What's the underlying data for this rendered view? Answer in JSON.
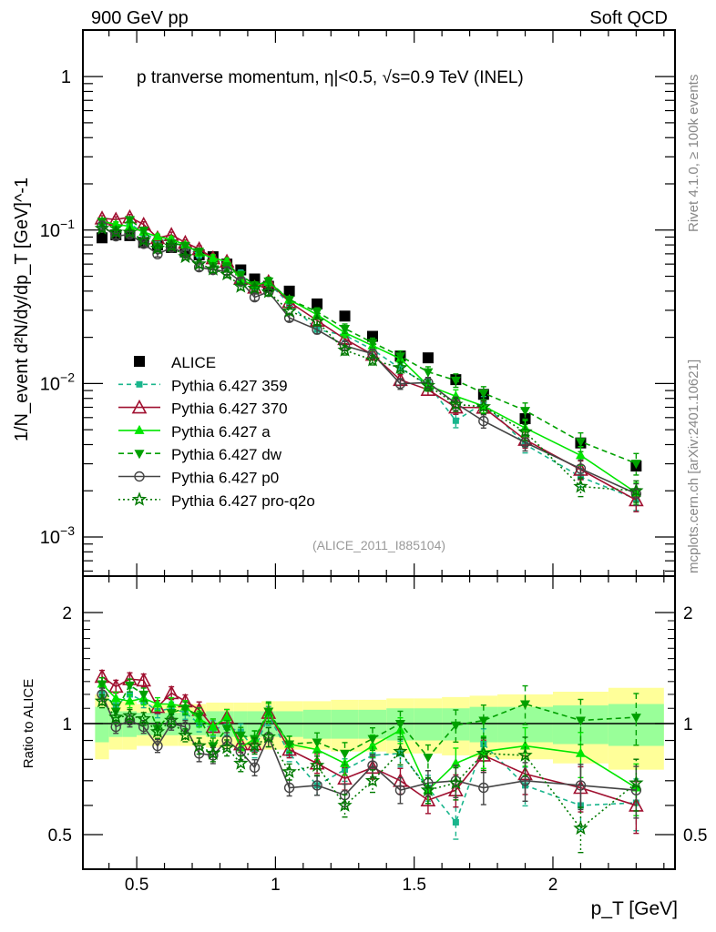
{
  "header": {
    "left": "900 GeV pp",
    "right": "Soft QCD"
  },
  "side": {
    "rivet": "Rivet 4.1.0, ≥ 100k events",
    "mcplots": "mcplots.cern.ch [arXiv:2401.10621]"
  },
  "chart_data": {
    "type": "scatter",
    "title": "p tranverse momentum, η|<0.5, √s=0.9 TeV (INEL)",
    "watermark": "(ALICE_2011_I885104)",
    "xlabel": "p_T [GeV]",
    "ylabel": "1/N_event d²N/dy/dp_T [GeV]^-1",
    "ratio_ylabel": "Ratio to ALICE",
    "xlim": [
      0.306,
      2.44
    ],
    "ylim": [
      0.000556,
      2.01
    ],
    "ratio_ylim": [
      0.403,
      2.51
    ],
    "yscale": "log",
    "legend_position": "center-left",
    "x_ticks": [
      "0.5",
      "1",
      "1.5",
      "2"
    ],
    "x_tick_values": [
      0.5,
      1,
      1.5,
      2
    ],
    "y_ticks": [
      {
        "base": "1",
        "exp": ""
      },
      {
        "base": "10",
        "exp": "−1"
      },
      {
        "base": "10",
        "exp": "−2"
      },
      {
        "base": "10",
        "exp": "−3"
      }
    ],
    "y_tick_values": [
      1,
      0.1,
      0.01,
      0.001
    ],
    "ratio_ticks": [
      "0.5",
      "1",
      "2"
    ],
    "ratio_tick_values": [
      0.5,
      1,
      2
    ],
    "x": [
      0.375,
      0.425,
      0.475,
      0.525,
      0.575,
      0.625,
      0.675,
      0.725,
      0.775,
      0.825,
      0.875,
      0.925,
      0.975,
      1.05,
      1.15,
      1.25,
      1.35,
      1.45,
      1.55,
      1.65,
      1.75,
      1.9,
      2.1,
      2.3
    ],
    "bin_edges": [
      0.35,
      0.4,
      0.45,
      0.5,
      0.55,
      0.6,
      0.65,
      0.7,
      0.75,
      0.8,
      0.85,
      0.9,
      0.95,
      1.0,
      1.1,
      1.2,
      1.3,
      1.4,
      1.5,
      1.6,
      1.7,
      1.8,
      2.0,
      2.2,
      2.4
    ],
    "reference": {
      "name": "ALICE",
      "values": [
        0.089,
        0.093,
        0.092,
        0.083,
        0.08,
        0.077,
        0.072,
        0.069,
        0.067,
        0.06,
        0.055,
        0.048,
        0.043,
        0.04,
        0.033,
        0.0275,
        0.0203,
        0.0151,
        0.0147,
        0.0106,
        0.0085,
        0.0059,
        0.0041,
        0.0029
      ],
      "band_total_rel": [
        0.2,
        0.15,
        0.15,
        0.13,
        0.13,
        0.13,
        0.13,
        0.13,
        0.14,
        0.14,
        0.14,
        0.14,
        0.15,
        0.15,
        0.15,
        0.16,
        0.16,
        0.17,
        0.17,
        0.18,
        0.19,
        0.2,
        0.22,
        0.25
      ],
      "band_inner_rel": [
        0.11,
        0.08,
        0.08,
        0.07,
        0.07,
        0.07,
        0.07,
        0.07,
        0.08,
        0.08,
        0.08,
        0.08,
        0.08,
        0.08,
        0.09,
        0.09,
        0.09,
        0.1,
        0.1,
        0.1,
        0.11,
        0.11,
        0.12,
        0.13
      ]
    },
    "model_rel_err": [
      0.04,
      0.04,
      0.04,
      0.04,
      0.04,
      0.04,
      0.04,
      0.05,
      0.05,
      0.05,
      0.05,
      0.05,
      0.06,
      0.05,
      0.06,
      0.07,
      0.07,
      0.08,
      0.08,
      0.1,
      0.1,
      0.12,
      0.14,
      0.16
    ],
    "series": [
      {
        "name": "Pythia 6.427 359",
        "color": "#19b58c",
        "dash": "5,4",
        "marker": "square-small",
        "ratio": [
          1.2,
          1.12,
          1.2,
          1.15,
          1.08,
          1.1,
          1.07,
          1.0,
          0.97,
          0.98,
          0.95,
          0.85,
          1.05,
          0.83,
          0.68,
          0.75,
          0.82,
          0.83,
          0.67,
          0.54,
          0.88,
          0.68,
          0.6,
          0.61
        ]
      },
      {
        "name": "Pythia 6.427 370",
        "color": "#a01030",
        "dash": "",
        "marker": "triangle-open",
        "ratio": [
          1.34,
          1.26,
          1.32,
          1.31,
          1.11,
          1.21,
          1.15,
          1.09,
          0.98,
          1.04,
          0.88,
          0.88,
          1.07,
          0.85,
          0.78,
          0.71,
          0.76,
          0.7,
          0.62,
          0.66,
          0.82,
          0.73,
          0.67,
          0.6
        ]
      },
      {
        "name": "Pythia 6.427 a",
        "color": "#00e600",
        "dash": "",
        "marker": "triangle-filled",
        "ratio": [
          1.28,
          1.17,
          1.15,
          1.17,
          1.13,
          1.13,
          1.11,
          1.03,
          0.98,
          1.04,
          0.86,
          0.91,
          1.07,
          0.88,
          0.85,
          0.78,
          0.87,
          0.96,
          0.66,
          0.78,
          0.84,
          0.87,
          0.83,
          0.67
        ]
      },
      {
        "name": "Pythia 6.427 dw",
        "color": "#00a000",
        "dash": "6,4",
        "marker": "triangle-down",
        "ratio": [
          1.28,
          1.08,
          1.27,
          1.2,
          0.97,
          1.07,
          1.1,
          1.05,
          0.87,
          0.97,
          0.93,
          0.91,
          1.08,
          0.88,
          0.89,
          0.83,
          0.91,
          1.0,
          0.81,
          0.99,
          1.02,
          1.13,
          1.02,
          1.04
        ]
      },
      {
        "name": "Pythia 6.427 p0",
        "color": "#444444",
        "dash": "",
        "marker": "circle-open",
        "ratio": [
          1.2,
          0.98,
          1.02,
          0.98,
          0.87,
          1.0,
          0.98,
          0.83,
          0.82,
          0.9,
          0.84,
          0.76,
          0.92,
          0.67,
          0.68,
          0.64,
          0.77,
          0.66,
          0.69,
          0.7,
          0.67,
          0.7,
          0.68,
          0.66
        ]
      },
      {
        "name": "Pythia 6.427 pro-q2o",
        "color": "#007a00",
        "dash": "2,3",
        "marker": "star-open",
        "ratio": [
          1.15,
          1.04,
          1.05,
          1.03,
          0.95,
          1.02,
          0.93,
          0.87,
          0.83,
          0.86,
          0.78,
          0.87,
          0.92,
          0.74,
          0.77,
          0.6,
          0.7,
          0.84,
          0.66,
          0.69,
          0.83,
          0.82,
          0.52,
          0.69
        ]
      }
    ]
  }
}
